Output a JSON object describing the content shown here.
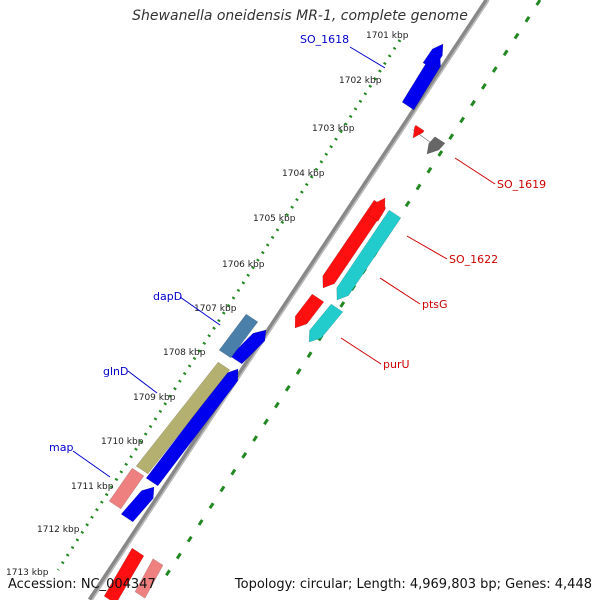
{
  "title": "Shewanella oneidensis MR-1, complete genome",
  "footer": {
    "accession": "Accession: NC_004347",
    "topology": "Topology: circular; Length: 4,969,803 bp; Genes: 4,448"
  },
  "ticks": [
    {
      "label": "1701 kbp"
    },
    {
      "label": "1702 kbp"
    },
    {
      "label": "1703 kbp"
    },
    {
      "label": "1704 kbp"
    },
    {
      "label": "1705 kbp"
    },
    {
      "label": "1706 kbp"
    },
    {
      "label": "1707 kbp"
    },
    {
      "label": "1708 kbp"
    },
    {
      "label": "1709 kbp"
    },
    {
      "label": "1710 kbp"
    },
    {
      "label": "1711 kbp"
    },
    {
      "label": "1712 kbp"
    },
    {
      "label": "1713 kbp"
    }
  ],
  "gene_labels": [
    {
      "text": "SO_1618",
      "color": "#0000cc"
    },
    {
      "text": "SO_1619",
      "color": "#cc0000"
    },
    {
      "text": "SO_1622",
      "color": "#cc0000"
    },
    {
      "text": "ptsG",
      "color": "#cc0000"
    },
    {
      "text": "purU",
      "color": "#cc0000"
    },
    {
      "text": "dapD",
      "color": "#0000cc"
    },
    {
      "text": "glnD",
      "color": "#0000cc"
    },
    {
      "text": "map",
      "color": "#0000cc"
    }
  ],
  "colors": {
    "blue": "#0000ee",
    "red": "#ff1010",
    "cyan": "#22cccc",
    "gray": "#666666",
    "steel": "#4a7faa",
    "olive": "#b4b070",
    "pink": "#ee8080",
    "backbone": "#888888",
    "dots": "#228822"
  }
}
